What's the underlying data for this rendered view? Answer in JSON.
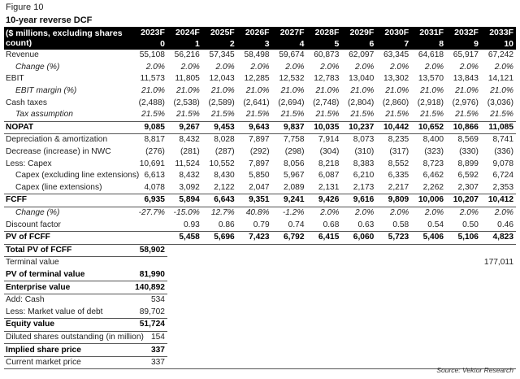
{
  "figure_label": "Figure 10",
  "title": "10-year reverse DCF",
  "header_label": "($ millions, excluding shares count)",
  "columns": [
    {
      "year": "2023F",
      "idx": "0"
    },
    {
      "year": "2024F",
      "idx": "1"
    },
    {
      "year": "2025F",
      "idx": "2"
    },
    {
      "year": "2026F",
      "idx": "3"
    },
    {
      "year": "2027F",
      "idx": "4"
    },
    {
      "year": "2028F",
      "idx": "5"
    },
    {
      "year": "2029F",
      "idx": "6"
    },
    {
      "year": "2030F",
      "idx": "7"
    },
    {
      "year": "2031F",
      "idx": "8"
    },
    {
      "year": "2032F",
      "idx": "9"
    },
    {
      "year": "2033F",
      "idx": "10"
    }
  ],
  "rows": [
    {
      "label": "Revenue",
      "style": "",
      "values": [
        "55,108",
        "56,216",
        "57,345",
        "58,498",
        "59,674",
        "60,873",
        "62,097",
        "63,345",
        "64,618",
        "65,917",
        "67,242"
      ]
    },
    {
      "label": "Change (%)",
      "style": "ital",
      "values": [
        "2.0%",
        "2.0%",
        "2.0%",
        "2.0%",
        "2.0%",
        "2.0%",
        "2.0%",
        "2.0%",
        "2.0%",
        "2.0%",
        "2.0%"
      ]
    },
    {
      "label": "EBIT",
      "style": "",
      "values": [
        "11,573",
        "11,805",
        "12,043",
        "12,285",
        "12,532",
        "12,783",
        "13,040",
        "13,302",
        "13,570",
        "13,843",
        "14,121"
      ]
    },
    {
      "label": "EBIT margin (%)",
      "style": "ital",
      "values": [
        "21.0%",
        "21.0%",
        "21.0%",
        "21.0%",
        "21.0%",
        "21.0%",
        "21.0%",
        "21.0%",
        "21.0%",
        "21.0%",
        "21.0%"
      ]
    },
    {
      "label": "Cash taxes",
      "style": "",
      "values": [
        "(2,488)",
        "(2,538)",
        "(2,589)",
        "(2,641)",
        "(2,694)",
        "(2,748)",
        "(2,804)",
        "(2,860)",
        "(2,918)",
        "(2,976)",
        "(3,036)"
      ]
    },
    {
      "label": "Tax assumption",
      "style": "ital",
      "values": [
        "21.5%",
        "21.5%",
        "21.5%",
        "21.5%",
        "21.5%",
        "21.5%",
        "21.5%",
        "21.5%",
        "21.5%",
        "21.5%",
        "21.5%"
      ]
    },
    {
      "label": "NOPAT",
      "style": "bold topline botline",
      "values": [
        "9,085",
        "9,267",
        "9,453",
        "9,643",
        "9,837",
        "10,035",
        "10,237",
        "10,442",
        "10,652",
        "10,866",
        "11,085"
      ]
    },
    {
      "label": "Depreciation & amortization",
      "style": "",
      "values": [
        "8,817",
        "8,432",
        "8,028",
        "7,897",
        "7,758",
        "7,914",
        "8,073",
        "8,235",
        "8,400",
        "8,569",
        "8,741"
      ]
    },
    {
      "label": "Decrease (increase) in NWC",
      "style": "",
      "values": [
        "(276)",
        "(281)",
        "(287)",
        "(292)",
        "(298)",
        "(304)",
        "(310)",
        "(317)",
        "(323)",
        "(330)",
        "(336)"
      ]
    },
    {
      "label": "Less: Capex",
      "style": "",
      "values": [
        "10,691",
        "11,524",
        "10,552",
        "7,897",
        "8,056",
        "8,218",
        "8,383",
        "8,552",
        "8,723",
        "8,899",
        "9,078"
      ]
    },
    {
      "label": "Capex (excluding line extensions)",
      "style": "ind",
      "values": [
        "6,613",
        "8,432",
        "8,430",
        "5,850",
        "5,967",
        "6,087",
        "6,210",
        "6,335",
        "6,462",
        "6,592",
        "6,724"
      ]
    },
    {
      "label": "Capex (line extensions)",
      "style": "ind",
      "values": [
        "4,078",
        "3,092",
        "2,122",
        "2,047",
        "2,089",
        "2,131",
        "2,173",
        "2,217",
        "2,262",
        "2,307",
        "2,353"
      ]
    },
    {
      "label": "FCFF",
      "style": "bold topline botline",
      "values": [
        "6,935",
        "5,894",
        "6,643",
        "9,351",
        "9,241",
        "9,426",
        "9,616",
        "9,809",
        "10,006",
        "10,207",
        "10,412"
      ]
    },
    {
      "label": "Change (%)",
      "style": "ital",
      "values": [
        "-27.7%",
        "-15.0%",
        "12.7%",
        "40.8%",
        "-1.2%",
        "2.0%",
        "2.0%",
        "2.0%",
        "2.0%",
        "2.0%",
        "2.0%"
      ]
    },
    {
      "label": "Discount factor",
      "style": "",
      "values": [
        "",
        "0.93",
        "0.86",
        "0.79",
        "0.74",
        "0.68",
        "0.63",
        "0.58",
        "0.54",
        "0.50",
        "0.46"
      ]
    },
    {
      "label": "PV of FCFF",
      "style": "bold topline botline",
      "values": [
        "",
        "5,458",
        "5,696",
        "7,423",
        "6,792",
        "6,415",
        "6,060",
        "5,723",
        "5,406",
        "5,106",
        "4,823"
      ]
    }
  ],
  "summary": [
    {
      "label": "Total PV of FCFF",
      "style": "bold botline",
      "value": "58,902",
      "tail": ""
    },
    {
      "label": "Terminal value",
      "style": "",
      "value": "",
      "tail": "177,011"
    },
    {
      "label": "PV of terminal value",
      "style": "bold botline",
      "value": "81,990",
      "tail": ""
    },
    {
      "label": "Enterprise value",
      "style": "bold topline botline",
      "value": "140,892",
      "tail": ""
    },
    {
      "label": "Add: Cash",
      "style": "",
      "value": "534",
      "tail": ""
    },
    {
      "label": "Less: Market value of debt",
      "style": "",
      "value": "89,702",
      "tail": ""
    },
    {
      "label": "Equity value",
      "style": "bold topline botline",
      "value": "51,724",
      "tail": ""
    },
    {
      "label": "Diluted shares outstanding (in million)",
      "style": "",
      "value": "154",
      "tail": ""
    },
    {
      "label": "Implied share price",
      "style": "bold topline botline",
      "value": "337",
      "tail": ""
    },
    {
      "label": "Current market price",
      "style": "",
      "value": "337",
      "tail": ""
    }
  ],
  "source": "Source: Vektor Research"
}
